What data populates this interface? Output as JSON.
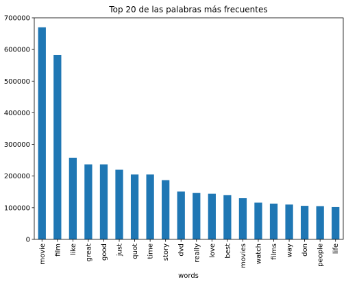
{
  "chart_data": {
    "type": "bar",
    "title": "Top 20 de las palabras más frecuentes",
    "xlabel": "words",
    "ylabel": "",
    "categories": [
      "movie",
      "film",
      "like",
      "great",
      "good",
      "just",
      "quot",
      "time",
      "story",
      "dvd",
      "really",
      "love",
      "best",
      "movies",
      "watch",
      "films",
      "way",
      "don",
      "people",
      "life"
    ],
    "values": [
      670000,
      583000,
      258000,
      237000,
      237000,
      220000,
      205000,
      205000,
      187000,
      151000,
      147000,
      144000,
      140000,
      130000,
      116000,
      113000,
      110000,
      106000,
      105000,
      102000
    ],
    "ylim": [
      0,
      700000
    ],
    "yticks": [
      0,
      100000,
      200000,
      300000,
      400000,
      500000,
      600000,
      700000
    ],
    "ytick_labels": [
      "0",
      "100000",
      "200000",
      "300000",
      "400000",
      "500000",
      "600000",
      "700000"
    ],
    "grid": false,
    "bar_color": "#1f77b4"
  }
}
